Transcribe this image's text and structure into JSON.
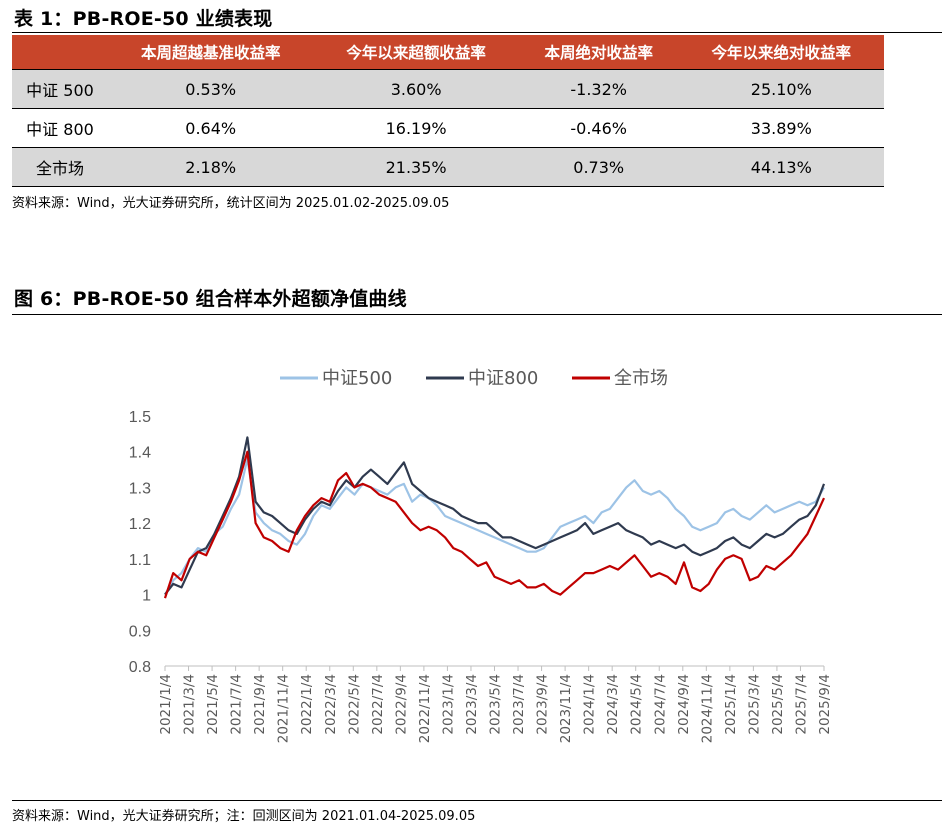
{
  "table_title": "表 1：PB-ROE-50 业绩表现",
  "table": {
    "headers": [
      "",
      "本周超越基准收益率",
      "今年以来超额收益率",
      "本周绝对收益率",
      "今年以来绝对收益率"
    ],
    "rows": [
      [
        "中证 500",
        "0.53%",
        "3.60%",
        "-1.32%",
        "25.10%"
      ],
      [
        "中证 800",
        "0.64%",
        "16.19%",
        "-0.46%",
        "33.89%"
      ],
      [
        "全市场",
        "2.18%",
        "21.35%",
        "0.73%",
        "44.13%"
      ]
    ]
  },
  "table_source": "资料来源：Wind，光大证券研究所，统计区间为 2025.01.02-2025.09.05",
  "figure_title": "图 6：PB-ROE-50 组合样本外超额净值曲线",
  "figure_source": "资料来源：Wind，光大证券研究所；注：回测区间为 2021.01.04-2025.09.05",
  "chart_data": {
    "type": "line",
    "x_tick_labels": [
      "2021/1/4",
      "2021/3/4",
      "2021/5/4",
      "2021/7/4",
      "2021/9/4",
      "2021/11/4",
      "2022/1/4",
      "2022/3/4",
      "2022/5/4",
      "2022/7/4",
      "2022/9/4",
      "2022/11/4",
      "2023/1/4",
      "2023/3/4",
      "2023/5/4",
      "2023/7/4",
      "2023/9/4",
      "2023/11/4",
      "2024/1/4",
      "2024/3/4",
      "2024/5/4",
      "2024/7/4",
      "2024/9/4",
      "2024/11/4",
      "2025/1/4",
      "2025/3/4",
      "2025/5/4",
      "2025/7/4",
      "2025/9/4"
    ],
    "y_tick_labels": [
      "0.8",
      "0.9",
      "1",
      "1.1",
      "1.2",
      "1.3",
      "1.4",
      "1.5"
    ],
    "ylim": [
      0.8,
      1.5
    ],
    "legend_position": "top",
    "series": [
      {
        "name": "中证500",
        "color": "#9dc3e6",
        "values": [
          1.0,
          1.04,
          1.06,
          1.1,
          1.13,
          1.12,
          1.17,
          1.19,
          1.24,
          1.28,
          1.38,
          1.23,
          1.2,
          1.18,
          1.17,
          1.15,
          1.14,
          1.17,
          1.22,
          1.25,
          1.24,
          1.27,
          1.3,
          1.28,
          1.31,
          1.3,
          1.29,
          1.28,
          1.3,
          1.31,
          1.26,
          1.28,
          1.27,
          1.25,
          1.22,
          1.21,
          1.2,
          1.19,
          1.18,
          1.17,
          1.16,
          1.15,
          1.14,
          1.13,
          1.12,
          1.12,
          1.13,
          1.16,
          1.19,
          1.2,
          1.21,
          1.22,
          1.2,
          1.23,
          1.24,
          1.27,
          1.3,
          1.32,
          1.29,
          1.28,
          1.29,
          1.27,
          1.24,
          1.22,
          1.19,
          1.18,
          1.19,
          1.2,
          1.23,
          1.24,
          1.22,
          1.21,
          1.23,
          1.25,
          1.23,
          1.24,
          1.25,
          1.26,
          1.25,
          1.26,
          1.3
        ]
      },
      {
        "name": "中证800",
        "color": "#2f3a4f",
        "values": [
          1.0,
          1.03,
          1.02,
          1.07,
          1.12,
          1.13,
          1.17,
          1.22,
          1.27,
          1.33,
          1.44,
          1.26,
          1.23,
          1.22,
          1.2,
          1.18,
          1.17,
          1.21,
          1.24,
          1.26,
          1.25,
          1.29,
          1.32,
          1.3,
          1.33,
          1.35,
          1.33,
          1.31,
          1.34,
          1.37,
          1.31,
          1.29,
          1.27,
          1.26,
          1.25,
          1.24,
          1.22,
          1.21,
          1.2,
          1.2,
          1.18,
          1.16,
          1.16,
          1.15,
          1.14,
          1.13,
          1.14,
          1.15,
          1.16,
          1.17,
          1.18,
          1.2,
          1.17,
          1.18,
          1.19,
          1.2,
          1.18,
          1.17,
          1.16,
          1.14,
          1.15,
          1.14,
          1.13,
          1.14,
          1.12,
          1.11,
          1.12,
          1.13,
          1.15,
          1.16,
          1.14,
          1.13,
          1.15,
          1.17,
          1.16,
          1.17,
          1.19,
          1.21,
          1.22,
          1.25,
          1.31
        ]
      },
      {
        "name": "全市场",
        "color": "#c00000",
        "values": [
          0.99,
          1.06,
          1.04,
          1.1,
          1.12,
          1.11,
          1.16,
          1.21,
          1.26,
          1.32,
          1.4,
          1.2,
          1.16,
          1.15,
          1.13,
          1.12,
          1.18,
          1.22,
          1.25,
          1.27,
          1.26,
          1.32,
          1.34,
          1.3,
          1.31,
          1.3,
          1.28,
          1.27,
          1.26,
          1.23,
          1.2,
          1.18,
          1.19,
          1.18,
          1.16,
          1.13,
          1.12,
          1.1,
          1.08,
          1.09,
          1.05,
          1.04,
          1.03,
          1.04,
          1.02,
          1.02,
          1.03,
          1.01,
          1.0,
          1.02,
          1.04,
          1.06,
          1.06,
          1.07,
          1.08,
          1.07,
          1.09,
          1.11,
          1.08,
          1.05,
          1.06,
          1.05,
          1.03,
          1.09,
          1.02,
          1.01,
          1.03,
          1.07,
          1.1,
          1.11,
          1.1,
          1.04,
          1.05,
          1.08,
          1.07,
          1.09,
          1.11,
          1.14,
          1.17,
          1.22,
          1.27
        ]
      }
    ]
  }
}
